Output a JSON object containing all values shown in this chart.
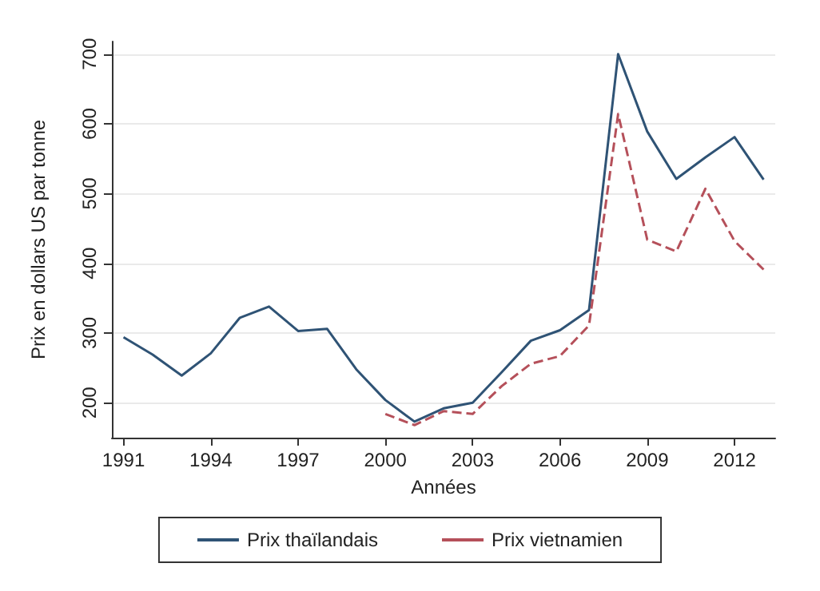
{
  "chart_data": {
    "type": "line",
    "xlabel": "Années",
    "ylabel": "Prix en dollars US par tonne",
    "xlim": [
      1990.6,
      2013.4
    ],
    "xticks": [
      1991,
      1994,
      1997,
      2000,
      2003,
      2006,
      2009,
      2012
    ],
    "ylim": [
      150,
      718
    ],
    "yticks": [
      200,
      300,
      400,
      500,
      600,
      700
    ],
    "grid": "y",
    "legend": "bottom",
    "marker": "none",
    "series": [
      {
        "name": "Prix thaïlandais",
        "color": "#2f5375",
        "line_style": "solid",
        "x": [
          1991,
          1992,
          1993,
          1994,
          1995,
          1996,
          1997,
          1998,
          1999,
          2000,
          2001,
          2002,
          2003,
          2004,
          2005,
          2006,
          2007,
          2008,
          2009,
          2010,
          2011,
          2012,
          2013
        ],
        "values": [
          294,
          269,
          239,
          271,
          322,
          338,
          303,
          306,
          248,
          204,
          173,
          192,
          200,
          244,
          289,
          304,
          333,
          700,
          589,
          521,
          552,
          581,
          520
        ]
      },
      {
        "name": "Prix vietnamien",
        "color": "#b5505a",
        "line_style": "dashed",
        "x": [
          2000,
          2001,
          2002,
          2003,
          2004,
          2005,
          2006,
          2007,
          2008,
          2009,
          2010,
          2011,
          2012,
          2013
        ],
        "values": [
          184,
          168,
          188,
          184,
          224,
          256,
          267,
          311,
          614,
          434,
          417,
          507,
          432,
          391
        ]
      }
    ]
  }
}
